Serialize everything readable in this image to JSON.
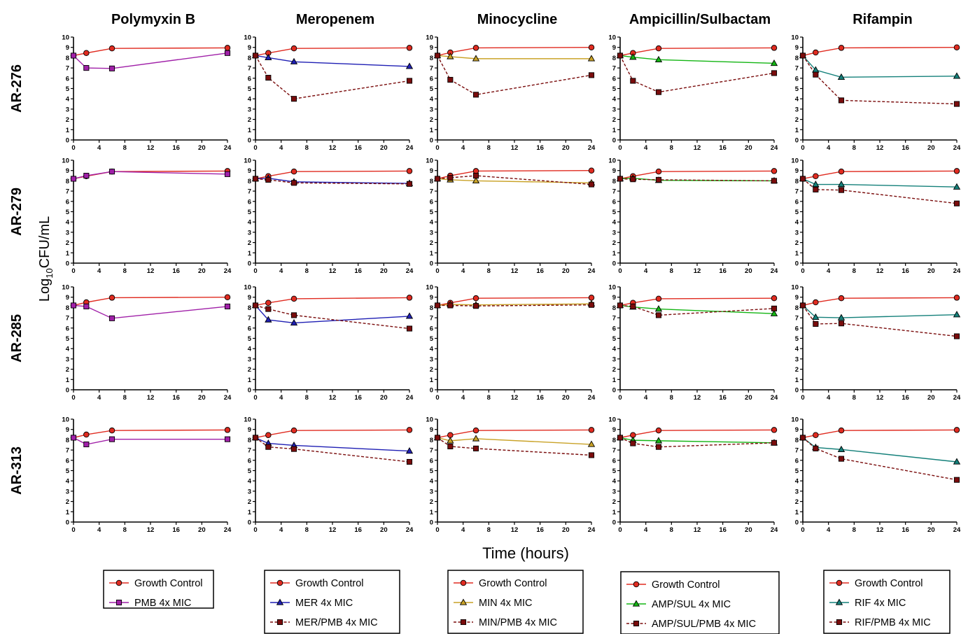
{
  "y_axis_label_main": "Log",
  "y_axis_label_sub": "10",
  "y_axis_label_unit": "CFU/mL",
  "x_axis_label": "Time (hours)",
  "colors": {
    "growth": "#e02b20",
    "pmb": "#a020a8",
    "mer": "#1f1fb4",
    "min": "#c9a227",
    "ampsul": "#13b513",
    "rif": "#14807a",
    "combo": "#7a0c0c"
  },
  "chart_data": {
    "type": "line",
    "x": [
      0,
      2,
      6,
      24
    ],
    "xlim": [
      0,
      24
    ],
    "ylim": [
      0,
      10
    ],
    "x_ticks": [
      0,
      4,
      8,
      12,
      16,
      20,
      24
    ],
    "y_ticks": [
      0,
      1,
      2,
      3,
      4,
      5,
      6,
      7,
      8,
      9,
      10
    ],
    "grid": false,
    "columns": [
      "Polymyxin B",
      "Meropenem",
      "Minocycline",
      "Ampicillin/Sulbactam",
      "Rifampin"
    ],
    "rows": [
      "AR-276",
      "AR-279",
      "AR-285",
      "AR-313"
    ],
    "legends": [
      {
        "entries": [
          {
            "name": "Growth Control",
            "marker": "circle",
            "color": "#e02b20",
            "dash": false
          },
          {
            "name": "PMB 4x MIC",
            "marker": "square",
            "color": "#a020a8",
            "dash": false
          }
        ]
      },
      {
        "entries": [
          {
            "name": "Growth Control",
            "marker": "circle",
            "color": "#e02b20",
            "dash": false
          },
          {
            "name": "MER  4x MIC",
            "marker": "triangle",
            "color": "#1f1fb4",
            "dash": false
          },
          {
            "name": "MER/PMB 4x MIC",
            "marker": "square",
            "color": "#7a0c0c",
            "dash": true
          }
        ]
      },
      {
        "entries": [
          {
            "name": "Growth Control",
            "marker": "circle",
            "color": "#e02b20",
            "dash": false
          },
          {
            "name": "MIN   4x MIC",
            "marker": "triangle",
            "color": "#c9a227",
            "dash": false
          },
          {
            "name": "MIN/PMB  4x MIC",
            "marker": "square",
            "color": "#7a0c0c",
            "dash": true
          }
        ]
      },
      {
        "entries": [
          {
            "name": "Growth Control",
            "marker": "circle",
            "color": "#e02b20",
            "dash": false
          },
          {
            "name": "AMP/SUL 4x MIC",
            "marker": "triangle",
            "color": "#13b513",
            "dash": false
          },
          {
            "name": "AMP/SUL/PMB 4x MIC",
            "marker": "square",
            "color": "#7a0c0c",
            "dash": true
          }
        ]
      },
      {
        "entries": [
          {
            "name": "Growth Control",
            "marker": "circle",
            "color": "#e02b20",
            "dash": false
          },
          {
            "name": "RIF 4x MIC",
            "marker": "triangle",
            "color": "#14807a",
            "dash": false
          },
          {
            "name": "RIF/PMB 4x MIC",
            "marker": "square",
            "color": "#7a0c0c",
            "dash": true
          }
        ]
      }
    ],
    "panels": [
      [
        {
          "series": [
            {
              "values": [
                8.2,
                8.45,
                8.9,
                8.95
              ],
              "marker": "circle",
              "color": "#e02b20",
              "dash": false
            },
            {
              "values": [
                8.2,
                7.0,
                6.95,
                8.45
              ],
              "marker": "square",
              "color": "#a020a8",
              "dash": false
            }
          ]
        },
        {
          "series": [
            {
              "values": [
                8.2,
                8.45,
                8.9,
                8.95
              ],
              "marker": "circle",
              "color": "#e02b20",
              "dash": false
            },
            {
              "values": [
                8.2,
                8.0,
                7.6,
                7.15
              ],
              "marker": "triangle",
              "color": "#1f1fb4",
              "dash": false
            },
            {
              "values": [
                8.2,
                6.05,
                4.0,
                5.75
              ],
              "marker": "square",
              "color": "#7a0c0c",
              "dash": true
            }
          ]
        },
        {
          "series": [
            {
              "values": [
                8.2,
                8.5,
                8.95,
                9.0
              ],
              "marker": "circle",
              "color": "#e02b20",
              "dash": false
            },
            {
              "values": [
                8.2,
                8.1,
                7.9,
                7.9
              ],
              "marker": "triangle",
              "color": "#c9a227",
              "dash": false
            },
            {
              "values": [
                8.2,
                5.85,
                4.4,
                6.3
              ],
              "marker": "square",
              "color": "#7a0c0c",
              "dash": true
            }
          ]
        },
        {
          "series": [
            {
              "values": [
                8.2,
                8.45,
                8.9,
                8.95
              ],
              "marker": "circle",
              "color": "#e02b20",
              "dash": false
            },
            {
              "values": [
                8.2,
                8.05,
                7.8,
                7.45
              ],
              "marker": "triangle",
              "color": "#13b513",
              "dash": false
            },
            {
              "values": [
                8.2,
                5.75,
                4.65,
                6.5
              ],
              "marker": "square",
              "color": "#7a0c0c",
              "dash": true
            }
          ]
        },
        {
          "series": [
            {
              "values": [
                8.2,
                8.5,
                8.95,
                9.0
              ],
              "marker": "circle",
              "color": "#e02b20",
              "dash": false
            },
            {
              "values": [
                8.2,
                6.8,
                6.1,
                6.2
              ],
              "marker": "triangle",
              "color": "#14807a",
              "dash": false
            },
            {
              "values": [
                8.2,
                6.35,
                3.85,
                3.5
              ],
              "marker": "square",
              "color": "#7a0c0c",
              "dash": true
            }
          ]
        }
      ],
      [
        {
          "series": [
            {
              "values": [
                8.2,
                8.45,
                8.9,
                8.95
              ],
              "marker": "circle",
              "color": "#e02b20",
              "dash": false
            },
            {
              "values": [
                8.2,
                8.5,
                8.9,
                8.65
              ],
              "marker": "square",
              "color": "#a020a8",
              "dash": false
            }
          ]
        },
        {
          "series": [
            {
              "values": [
                8.2,
                8.45,
                8.9,
                8.95
              ],
              "marker": "circle",
              "color": "#e02b20",
              "dash": false
            },
            {
              "values": [
                8.2,
                8.25,
                7.9,
                7.75
              ],
              "marker": "triangle",
              "color": "#1f1fb4",
              "dash": false
            },
            {
              "values": [
                8.2,
                8.1,
                7.8,
                7.7
              ],
              "marker": "square",
              "color": "#7a0c0c",
              "dash": true
            }
          ]
        },
        {
          "series": [
            {
              "values": [
                8.2,
                8.5,
                8.95,
                9.0
              ],
              "marker": "circle",
              "color": "#e02b20",
              "dash": false
            },
            {
              "values": [
                8.2,
                8.1,
                8.0,
                7.8
              ],
              "marker": "triangle",
              "color": "#c9a227",
              "dash": false
            },
            {
              "values": [
                8.2,
                8.3,
                8.5,
                7.65
              ],
              "marker": "square",
              "color": "#7a0c0c",
              "dash": true
            }
          ]
        },
        {
          "series": [
            {
              "values": [
                8.2,
                8.45,
                8.9,
                8.95
              ],
              "marker": "circle",
              "color": "#e02b20",
              "dash": false
            },
            {
              "values": [
                8.2,
                8.25,
                8.05,
                8.0
              ],
              "marker": "triangle",
              "color": "#13b513",
              "dash": false
            },
            {
              "values": [
                8.2,
                8.15,
                8.1,
                8.0
              ],
              "marker": "square",
              "color": "#7a0c0c",
              "dash": true
            }
          ]
        },
        {
          "series": [
            {
              "values": [
                8.2,
                8.45,
                8.9,
                8.95
              ],
              "marker": "circle",
              "color": "#e02b20",
              "dash": false
            },
            {
              "values": [
                8.2,
                7.65,
                7.65,
                7.4
              ],
              "marker": "triangle",
              "color": "#14807a",
              "dash": false
            },
            {
              "values": [
                8.2,
                7.15,
                7.1,
                5.8
              ],
              "marker": "square",
              "color": "#7a0c0c",
              "dash": true
            }
          ]
        }
      ],
      [
        {
          "series": [
            {
              "values": [
                8.2,
                8.5,
                8.95,
                9.0
              ],
              "marker": "circle",
              "color": "#e02b20",
              "dash": false
            },
            {
              "values": [
                8.2,
                8.1,
                6.95,
                8.1
              ],
              "marker": "square",
              "color": "#a020a8",
              "dash": false
            }
          ]
        },
        {
          "series": [
            {
              "values": [
                8.2,
                8.45,
                8.85,
                8.95
              ],
              "marker": "circle",
              "color": "#e02b20",
              "dash": false
            },
            {
              "values": [
                8.2,
                6.8,
                6.5,
                7.15
              ],
              "marker": "triangle",
              "color": "#1f1fb4",
              "dash": false
            },
            {
              "values": [
                8.2,
                7.85,
                7.25,
                5.95
              ],
              "marker": "square",
              "color": "#7a0c0c",
              "dash": true
            }
          ]
        },
        {
          "series": [
            {
              "values": [
                8.2,
                8.45,
                8.9,
                8.95
              ],
              "marker": "circle",
              "color": "#e02b20",
              "dash": false
            },
            {
              "values": [
                8.2,
                8.3,
                8.25,
                8.35
              ],
              "marker": "triangle",
              "color": "#c9a227",
              "dash": false
            },
            {
              "values": [
                8.2,
                8.2,
                8.15,
                8.25
              ],
              "marker": "square",
              "color": "#7a0c0c",
              "dash": true
            }
          ]
        },
        {
          "series": [
            {
              "values": [
                8.2,
                8.45,
                8.85,
                8.9
              ],
              "marker": "circle",
              "color": "#e02b20",
              "dash": false
            },
            {
              "values": [
                8.2,
                8.05,
                7.85,
                7.4
              ],
              "marker": "triangle",
              "color": "#13b513",
              "dash": false
            },
            {
              "values": [
                8.2,
                8.1,
                7.25,
                7.9
              ],
              "marker": "square",
              "color": "#7a0c0c",
              "dash": true
            }
          ]
        },
        {
          "series": [
            {
              "values": [
                8.2,
                8.5,
                8.9,
                8.95
              ],
              "marker": "circle",
              "color": "#e02b20",
              "dash": false
            },
            {
              "values": [
                8.2,
                7.05,
                7.0,
                7.3
              ],
              "marker": "triangle",
              "color": "#14807a",
              "dash": false
            },
            {
              "values": [
                8.2,
                6.4,
                6.45,
                5.2
              ],
              "marker": "square",
              "color": "#7a0c0c",
              "dash": true
            }
          ]
        }
      ],
      [
        {
          "series": [
            {
              "values": [
                8.2,
                8.5,
                8.9,
                8.95
              ],
              "marker": "circle",
              "color": "#e02b20",
              "dash": false
            },
            {
              "values": [
                8.2,
                7.55,
                8.05,
                8.05
              ],
              "marker": "square",
              "color": "#a020a8",
              "dash": false
            }
          ]
        },
        {
          "series": [
            {
              "values": [
                8.2,
                8.45,
                8.9,
                8.95
              ],
              "marker": "circle",
              "color": "#e02b20",
              "dash": false
            },
            {
              "values": [
                8.2,
                7.65,
                7.45,
                6.9
              ],
              "marker": "triangle",
              "color": "#1f1fb4",
              "dash": false
            },
            {
              "values": [
                8.2,
                7.3,
                7.1,
                5.85
              ],
              "marker": "square",
              "color": "#7a0c0c",
              "dash": true
            }
          ]
        },
        {
          "series": [
            {
              "values": [
                8.2,
                8.45,
                8.9,
                8.95
              ],
              "marker": "circle",
              "color": "#e02b20",
              "dash": false
            },
            {
              "values": [
                8.2,
                7.9,
                8.1,
                7.55
              ],
              "marker": "triangle",
              "color": "#c9a227",
              "dash": false
            },
            {
              "values": [
                8.2,
                7.35,
                7.15,
                6.5
              ],
              "marker": "square",
              "color": "#7a0c0c",
              "dash": true
            }
          ]
        },
        {
          "series": [
            {
              "values": [
                8.2,
                8.45,
                8.9,
                8.95
              ],
              "marker": "circle",
              "color": "#e02b20",
              "dash": false
            },
            {
              "values": [
                8.2,
                7.95,
                7.9,
                7.7
              ],
              "marker": "triangle",
              "color": "#13b513",
              "dash": false
            },
            {
              "values": [
                8.2,
                7.65,
                7.3,
                7.7
              ],
              "marker": "square",
              "color": "#7a0c0c",
              "dash": true
            }
          ]
        },
        {
          "series": [
            {
              "values": [
                8.2,
                8.45,
                8.9,
                8.95
              ],
              "marker": "circle",
              "color": "#e02b20",
              "dash": false
            },
            {
              "values": [
                8.2,
                7.25,
                7.05,
                5.85
              ],
              "marker": "triangle",
              "color": "#14807a",
              "dash": false
            },
            {
              "values": [
                8.2,
                7.15,
                6.15,
                4.1
              ],
              "marker": "square",
              "color": "#7a0c0c",
              "dash": true
            }
          ]
        }
      ]
    ]
  }
}
